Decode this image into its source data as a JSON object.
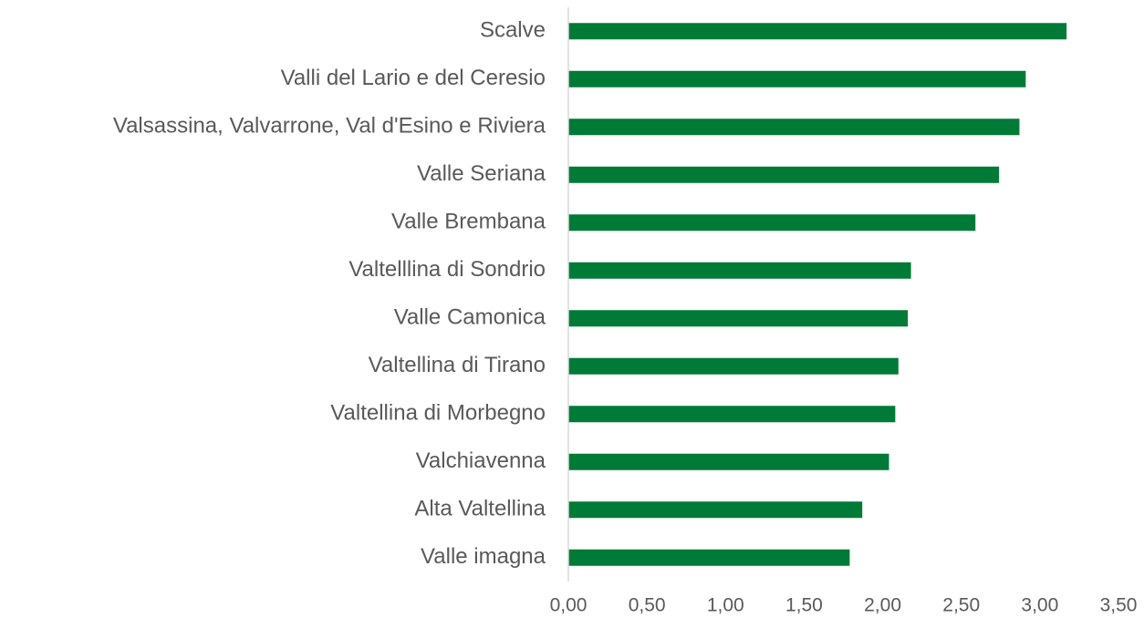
{
  "chart_data": {
    "type": "barh",
    "orientation": "horizontal",
    "color": "#007a37",
    "categories": [
      "Scalve",
      "Valli del Lario e del Ceresio",
      "Valsassina, Valvarrone, Val d'Esino e Riviera",
      "Valle Seriana",
      "Valle Brembana",
      "Valtelllina di Sondrio",
      "Valle Camonica",
      "Valtellina di Tirano",
      "Valtellina di Morbegno",
      "Valchiavenna",
      "Alta Valtellina",
      "Valle imagna"
    ],
    "values": [
      3.17,
      2.91,
      2.87,
      2.74,
      2.59,
      2.18,
      2.16,
      2.1,
      2.08,
      2.04,
      1.87,
      1.79
    ],
    "xlim": [
      0,
      3.5
    ],
    "xticks": [
      {
        "value": 0,
        "label": "0,00"
      },
      {
        "value": 0.5,
        "label": "0,50"
      },
      {
        "value": 1,
        "label": "1,00"
      },
      {
        "value": 1.5,
        "label": "1,50"
      },
      {
        "value": 2,
        "label": "2,00"
      },
      {
        "value": 2.5,
        "label": "2,50"
      },
      {
        "value": 3,
        "label": "3,00"
      },
      {
        "value": 3.5,
        "label": "3,50"
      }
    ],
    "grid": false
  }
}
